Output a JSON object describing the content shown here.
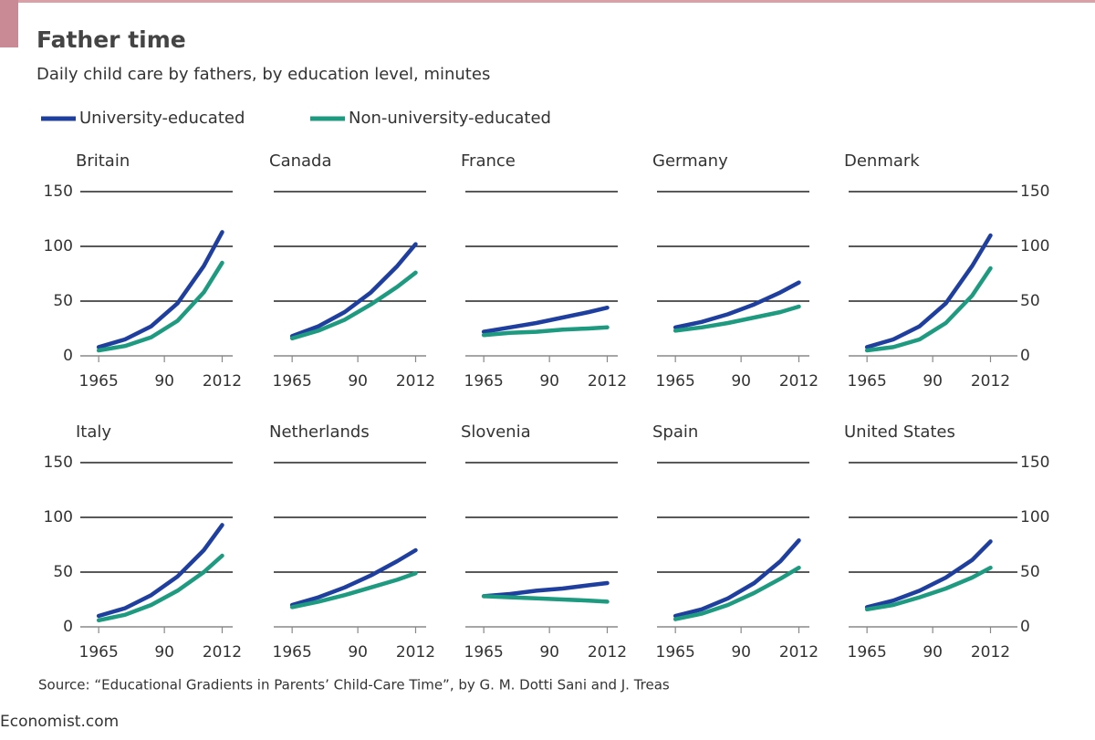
{
  "title": "Father time",
  "subtitle": "Daily child care by fathers, by education level, minutes",
  "source": "Source: “Educational Gradients in Parents’ Child-Care Time”, by G. M. Dotti Sani and J. Treas",
  "footer": "Economist.com",
  "chart_data": [
    {
      "type": "line",
      "title": "Britain",
      "x": [
        1965,
        1975,
        1985,
        1995,
        2005,
        2012
      ],
      "xlim": [
        1958,
        2016
      ],
      "ylim": [
        0,
        150
      ],
      "yticks": [
        0,
        50,
        100,
        150
      ],
      "xticks": [
        1965,
        {
          "value": 1990,
          "label": "90"
        },
        2012
      ],
      "series": [
        {
          "name": "University-educated",
          "color": "#1f3f9f",
          "values": [
            8,
            15,
            27,
            48,
            82,
            113
          ]
        },
        {
          "name": "Non-university-educated",
          "color": "#1e9a80",
          "values": [
            5,
            9,
            17,
            32,
            58,
            85
          ]
        }
      ]
    },
    {
      "type": "line",
      "title": "Canada",
      "x": [
        1965,
        1975,
        1985,
        1995,
        2005,
        2012
      ],
      "xlim": [
        1958,
        2016
      ],
      "ylim": [
        0,
        150
      ],
      "yticks": [
        0,
        50,
        100,
        150
      ],
      "xticks": [
        1965,
        {
          "value": 1990,
          "label": "90"
        },
        2012
      ],
      "series": [
        {
          "name": "University-educated",
          "color": "#1f3f9f",
          "values": [
            18,
            27,
            40,
            58,
            82,
            102
          ]
        },
        {
          "name": "Non-university-educated",
          "color": "#1e9a80",
          "values": [
            16,
            23,
            33,
            47,
            63,
            76
          ]
        }
      ]
    },
    {
      "type": "line",
      "title": "France",
      "x": [
        1965,
        1975,
        1985,
        1995,
        2005,
        2012
      ],
      "xlim": [
        1958,
        2016
      ],
      "ylim": [
        0,
        150
      ],
      "yticks": [
        0,
        50,
        100,
        150
      ],
      "xticks": [
        1965,
        {
          "value": 1990,
          "label": "90"
        },
        2012
      ],
      "series": [
        {
          "name": "University-educated",
          "color": "#1f3f9f",
          "values": [
            22,
            26,
            30,
            35,
            40,
            44
          ]
        },
        {
          "name": "Non-university-educated",
          "color": "#1e9a80",
          "values": [
            19,
            21,
            22,
            24,
            25,
            26
          ]
        }
      ]
    },
    {
      "type": "line",
      "title": "Germany",
      "x": [
        1965,
        1975,
        1985,
        1995,
        2005,
        2012
      ],
      "xlim": [
        1958,
        2016
      ],
      "ylim": [
        0,
        150
      ],
      "yticks": [
        0,
        50,
        100,
        150
      ],
      "xticks": [
        1965,
        {
          "value": 1990,
          "label": "90"
        },
        2012
      ],
      "series": [
        {
          "name": "University-educated",
          "color": "#1f3f9f",
          "values": [
            26,
            31,
            38,
            47,
            58,
            67
          ]
        },
        {
          "name": "Non-university-educated",
          "color": "#1e9a80",
          "values": [
            23,
            26,
            30,
            35,
            40,
            45
          ]
        }
      ]
    },
    {
      "type": "line",
      "title": "Denmark",
      "x": [
        1965,
        1975,
        1985,
        1995,
        2005,
        2012
      ],
      "xlim": [
        1958,
        2016
      ],
      "ylim": [
        0,
        150
      ],
      "yticks": [
        0,
        50,
        100,
        150
      ],
      "xticks": [
        1965,
        {
          "value": 1990,
          "label": "90"
        },
        2012
      ],
      "series": [
        {
          "name": "University-educated",
          "color": "#1f3f9f",
          "values": [
            8,
            15,
            27,
            48,
            82,
            110
          ]
        },
        {
          "name": "Non-university-educated",
          "color": "#1e9a80",
          "values": [
            5,
            8,
            15,
            30,
            55,
            80
          ]
        }
      ]
    },
    {
      "type": "line",
      "title": "Italy",
      "x": [
        1965,
        1975,
        1985,
        1995,
        2005,
        2012
      ],
      "xlim": [
        1958,
        2016
      ],
      "ylim": [
        0,
        150
      ],
      "yticks": [
        0,
        50,
        100,
        150
      ],
      "xticks": [
        1965,
        {
          "value": 1990,
          "label": "90"
        },
        2012
      ],
      "series": [
        {
          "name": "University-educated",
          "color": "#1f3f9f",
          "values": [
            10,
            17,
            29,
            46,
            70,
            93
          ]
        },
        {
          "name": "Non-university-educated",
          "color": "#1e9a80",
          "values": [
            6,
            11,
            20,
            33,
            50,
            65
          ]
        }
      ]
    },
    {
      "type": "line",
      "title": "Netherlands",
      "x": [
        1965,
        1975,
        1985,
        1995,
        2005,
        2012
      ],
      "xlim": [
        1958,
        2016
      ],
      "ylim": [
        0,
        150
      ],
      "yticks": [
        0,
        50,
        100,
        150
      ],
      "xticks": [
        1965,
        {
          "value": 1990,
          "label": "90"
        },
        2012
      ],
      "series": [
        {
          "name": "University-educated",
          "color": "#1f3f9f",
          "values": [
            20,
            27,
            36,
            47,
            60,
            70
          ]
        },
        {
          "name": "Non-university-educated",
          "color": "#1e9a80",
          "values": [
            18,
            23,
            29,
            36,
            43,
            49
          ]
        }
      ]
    },
    {
      "type": "line",
      "title": "Slovenia",
      "x": [
        1965,
        1975,
        1985,
        1995,
        2005,
        2012
      ],
      "xlim": [
        1958,
        2016
      ],
      "ylim": [
        0,
        150
      ],
      "yticks": [
        0,
        50,
        100,
        150
      ],
      "xticks": [
        1965,
        {
          "value": 1990,
          "label": "90"
        },
        2012
      ],
      "series": [
        {
          "name": "University-educated",
          "color": "#1f3f9f",
          "values": [
            28,
            30,
            33,
            35,
            38,
            40
          ]
        },
        {
          "name": "Non-university-educated",
          "color": "#1e9a80",
          "values": [
            28,
            27,
            26,
            25,
            24,
            23
          ]
        }
      ]
    },
    {
      "type": "line",
      "title": "Spain",
      "x": [
        1965,
        1975,
        1985,
        1995,
        2005,
        2012
      ],
      "xlim": [
        1958,
        2016
      ],
      "ylim": [
        0,
        150
      ],
      "yticks": [
        0,
        50,
        100,
        150
      ],
      "xticks": [
        1965,
        {
          "value": 1990,
          "label": "90"
        },
        2012
      ],
      "series": [
        {
          "name": "University-educated",
          "color": "#1f3f9f",
          "values": [
            10,
            16,
            26,
            40,
            60,
            79
          ]
        },
        {
          "name": "Non-university-educated",
          "color": "#1e9a80",
          "values": [
            7,
            12,
            20,
            31,
            44,
            54
          ]
        }
      ]
    },
    {
      "type": "line",
      "title": "United States",
      "x": [
        1965,
        1975,
        1985,
        1995,
        2005,
        2012
      ],
      "xlim": [
        1958,
        2016
      ],
      "ylim": [
        0,
        150
      ],
      "yticks": [
        0,
        50,
        100,
        150
      ],
      "xticks": [
        1965,
        {
          "value": 1990,
          "label": "90"
        },
        2012
      ],
      "series": [
        {
          "name": "University-educated",
          "color": "#1f3f9f",
          "values": [
            18,
            24,
            33,
            45,
            61,
            78
          ]
        },
        {
          "name": "Non-university-educated",
          "color": "#1e9a80",
          "values": [
            16,
            20,
            27,
            35,
            45,
            54
          ]
        }
      ]
    }
  ]
}
